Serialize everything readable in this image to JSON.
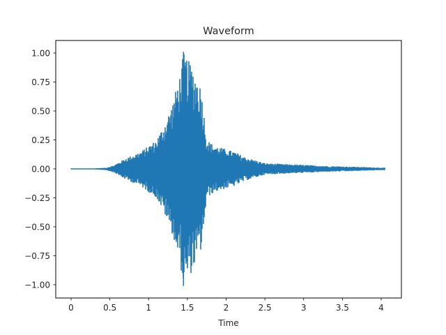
{
  "chart_data": {
    "type": "line",
    "title": "Waveform",
    "xlabel": "Time",
    "ylabel": "",
    "xlim": [
      -0.2,
      4.25
    ],
    "ylim": [
      -1.1,
      1.1
    ],
    "grid": false,
    "legend": null,
    "line_color": "#1f77b4",
    "x_ticks": [
      0,
      0.5,
      1,
      1.5,
      2,
      2.5,
      3,
      3.5,
      4
    ],
    "x_tick_labels": [
      "0",
      "0.5",
      "1",
      "1.5",
      "2",
      "2.5",
      "3",
      "3.5",
      "4"
    ],
    "y_ticks": [
      1.0,
      0.75,
      0.5,
      0.25,
      0.0,
      -0.25,
      -0.5,
      -0.75,
      -1.0
    ],
    "y_tick_labels": [
      "1.00",
      "0.75",
      "0.50",
      "0.25",
      "0.00",
      "−0.25",
      "−0.50",
      "−0.75",
      "−1.00"
    ],
    "signal_duration": 4.05,
    "envelope": {
      "description": "Approximate amplitude envelope of the audio waveform (time in seconds, peak |amplitude|)",
      "time": [
        0.0,
        0.3,
        0.45,
        0.55,
        0.7,
        0.9,
        1.0,
        1.1,
        1.2,
        1.3,
        1.4,
        1.45,
        1.5,
        1.55,
        1.6,
        1.68,
        1.75,
        1.85,
        2.0,
        2.1,
        2.25,
        2.5,
        2.8,
        3.0,
        3.3,
        3.6,
        4.05
      ],
      "amplitude": [
        0.0,
        0.005,
        0.01,
        0.03,
        0.09,
        0.15,
        0.2,
        0.25,
        0.38,
        0.55,
        0.8,
        1.0,
        0.95,
        0.9,
        0.82,
        0.7,
        0.25,
        0.2,
        0.17,
        0.15,
        0.1,
        0.05,
        0.04,
        0.035,
        0.025,
        0.02,
        0.01
      ]
    },
    "peak": {
      "time": 1.45,
      "value": 1.01,
      "min_value": -1.01
    }
  }
}
